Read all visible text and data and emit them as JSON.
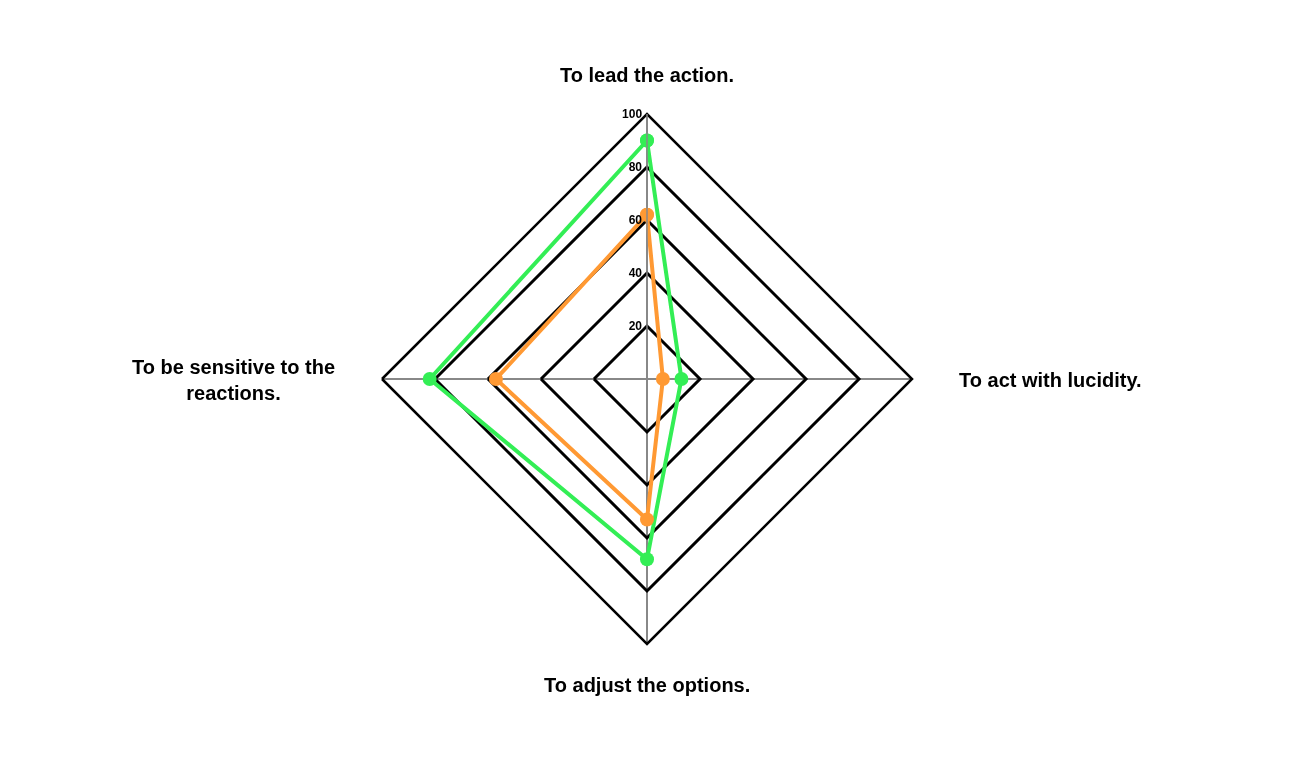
{
  "chart_data": {
    "type": "radar",
    "categories": [
      "To lead the action.",
      "To act with lucidity.",
      "To adjust the options.",
      "To be sensitive to the reactions."
    ],
    "series": [
      {
        "color": "#33ee55",
        "values": [
          90,
          13,
          68,
          82
        ]
      },
      {
        "color": "#ff9933",
        "values": [
          62,
          6,
          53,
          57
        ]
      }
    ],
    "ylim": [
      0,
      100
    ],
    "yticks": [
      20,
      40,
      60,
      80,
      100
    ],
    "marker": "circle",
    "line_style": "solid"
  }
}
